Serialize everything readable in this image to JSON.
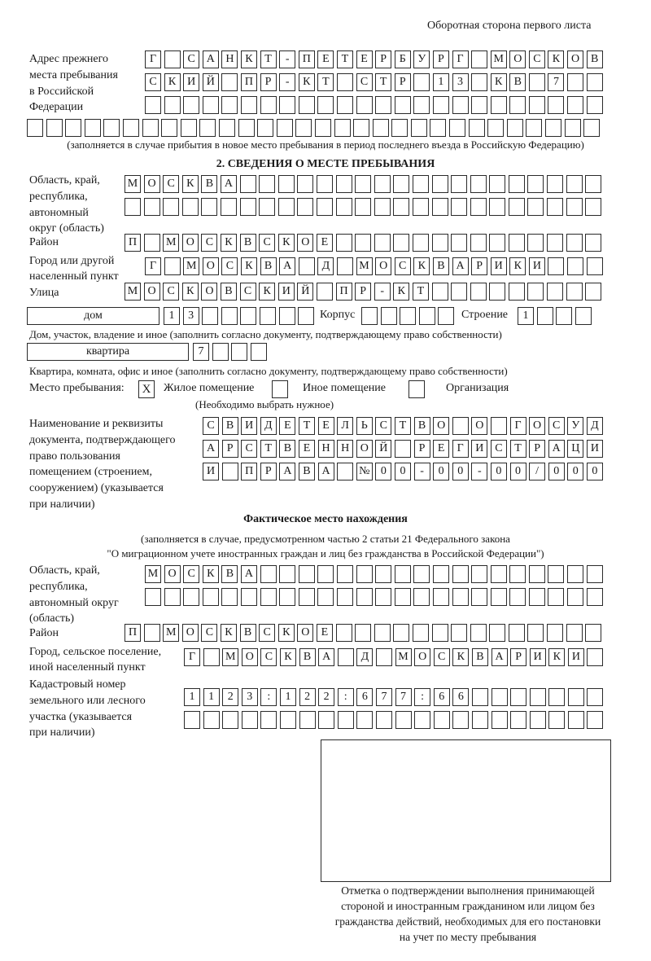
{
  "page_header": "Оборотная сторона первого листа",
  "previous_address": {
    "label": [
      "Адрес прежнего",
      "места пребывания",
      "в Российской",
      "Федерации"
    ],
    "rows": [
      [
        "Г",
        "",
        "С",
        "А",
        "Н",
        "К",
        "Т",
        "-",
        "П",
        "Е",
        "Т",
        "Е",
        "Р",
        "Б",
        "У",
        "Р",
        "Г",
        "",
        "М",
        "О",
        "С",
        "К",
        "О",
        "В"
      ],
      [
        "С",
        "К",
        "И",
        "Й",
        "",
        "П",
        "Р",
        "-",
        "К",
        "Т",
        "",
        "С",
        "Т",
        "Р",
        "",
        "1",
        "3",
        "",
        "К",
        "В",
        "",
        "7",
        "",
        ""
      ],
      [
        "",
        "",
        "",
        "",
        "",
        "",
        "",
        "",
        "",
        "",
        "",
        "",
        "",
        "",
        "",
        "",
        "",
        "",
        "",
        "",
        "",
        "",
        "",
        ""
      ],
      [
        "",
        "",
        "",
        "",
        "",
        "",
        "",
        "",
        "",
        "",
        "",
        "",
        "",
        "",
        "",
        "",
        "",
        "",
        "",
        "",
        "",
        "",
        "",
        "",
        "",
        "",
        "",
        "",
        "",
        ""
      ]
    ],
    "note": "(заполняется в случае прибытия в новое место пребывания в период последнего въезда в Российскую Федерацию)"
  },
  "section2": {
    "title": "2. СВЕДЕНИЯ О МЕСТЕ ПРЕБЫВАНИЯ",
    "region_label": [
      "Область, край,",
      "республика,",
      "автономный",
      "округ (область)"
    ],
    "region_rows": [
      [
        "М",
        "О",
        "С",
        "К",
        "В",
        "А",
        "",
        "",
        "",
        "",
        "",
        "",
        "",
        "",
        "",
        "",
        "",
        "",
        "",
        "",
        "",
        "",
        "",
        "",
        ""
      ],
      [
        "",
        "",
        "",
        "",
        "",
        "",
        "",
        "",
        "",
        "",
        "",
        "",
        "",
        "",
        "",
        "",
        "",
        "",
        "",
        "",
        "",
        "",
        "",
        "",
        ""
      ]
    ],
    "district_label": "Район",
    "district_row": [
      "П",
      "",
      "М",
      "О",
      "С",
      "К",
      "В",
      "С",
      "К",
      "О",
      "Е",
      "",
      "",
      "",
      "",
      "",
      "",
      "",
      "",
      "",
      "",
      "",
      "",
      "",
      ""
    ],
    "city_label": [
      "Город или другой",
      "населенный пункт"
    ],
    "city_row": [
      "Г",
      "",
      "М",
      "О",
      "С",
      "К",
      "В",
      "А",
      "",
      "Д",
      "",
      "М",
      "О",
      "С",
      "К",
      "В",
      "А",
      "Р",
      "И",
      "К",
      "И",
      "",
      "",
      ""
    ],
    "street_label": "Улица",
    "street_row": [
      "М",
      "О",
      "С",
      "К",
      "О",
      "В",
      "С",
      "К",
      "И",
      "Й",
      "",
      "П",
      "Р",
      "-",
      "К",
      "Т",
      "",
      "",
      "",
      "",
      "",
      "",
      "",
      "",
      ""
    ],
    "house_type": "дом",
    "house_row": [
      "1",
      "3",
      "",
      "",
      "",
      "",
      "",
      ""
    ],
    "korpus_label": "Корпус",
    "korpus_row": [
      "",
      "",
      "",
      "",
      ""
    ],
    "building_label": "Строение",
    "building_row": [
      "1",
      "",
      "",
      ""
    ],
    "house_note": "Дом, участок, владение и иное (заполнить согласно документу, подтверждающему право собственности)",
    "apartment_type": "квартира",
    "apartment_row": [
      "7",
      "",
      "",
      ""
    ],
    "apartment_note": "Квартира, комната, офис и иное (заполнить согласно документу, подтверждающему право собственности)",
    "stay_place_label": "Место пребывания:",
    "stay_options": [
      {
        "label": "Жилое помещение",
        "mark": "X"
      },
      {
        "label": "Иное помещение",
        "mark": ""
      },
      {
        "label": "Организация",
        "mark": ""
      }
    ],
    "stay_note": "(Необходимо выбрать нужное)",
    "document_label": [
      "Наименование и реквизиты",
      "документа, подтверждающего",
      "право пользования",
      "помещением (строением,",
      "сооружением) (указывается",
      "при наличии)"
    ],
    "document_rows": [
      [
        "С",
        "В",
        "И",
        "Д",
        "Е",
        "Т",
        "Е",
        "Л",
        "Ь",
        "С",
        "Т",
        "В",
        "О",
        "",
        "О",
        "",
        "Г",
        "О",
        "С",
        "У",
        "Д"
      ],
      [
        "А",
        "Р",
        "С",
        "Т",
        "В",
        "Е",
        "Н",
        "Н",
        "О",
        "Й",
        "",
        "Р",
        "Е",
        "Г",
        "И",
        "С",
        "Т",
        "Р",
        "А",
        "Ц",
        "И"
      ],
      [
        "И",
        "",
        "П",
        "Р",
        "А",
        "В",
        "А",
        "",
        "№",
        "0",
        "0",
        "-",
        "0",
        "0",
        "-",
        "0",
        "0",
        "/",
        "0",
        "0",
        "0"
      ]
    ]
  },
  "actual_location": {
    "title": "Фактическое место нахождения",
    "note": [
      "(заполняется в случае, предусмотренном частью 2 статьи 21 Федерального закона",
      "\"О миграционном учете иностранных граждан и лиц без гражданства в Российской Федерации\")"
    ],
    "region_label": [
      "Область, край,",
      "республика,",
      "автономный округ",
      "(область)"
    ],
    "region_rows": [
      [
        "М",
        "О",
        "С",
        "К",
        "В",
        "А",
        "",
        "",
        "",
        "",
        "",
        "",
        "",
        "",
        "",
        "",
        "",
        "",
        "",
        "",
        "",
        "",
        "",
        ""
      ],
      [
        "",
        "",
        "",
        "",
        "",
        "",
        "",
        "",
        "",
        "",
        "",
        "",
        "",
        "",
        "",
        "",
        "",
        "",
        "",
        "",
        "",
        "",
        "",
        ""
      ]
    ],
    "district_label": "Район",
    "district_row": [
      "П",
      "",
      "М",
      "О",
      "С",
      "К",
      "В",
      "С",
      "К",
      "О",
      "Е",
      "",
      "",
      "",
      "",
      "",
      "",
      "",
      "",
      "",
      "",
      "",
      "",
      "",
      ""
    ],
    "city_label": [
      "Город, сельское поселение,",
      "иной населенный пункт"
    ],
    "city_row": [
      "Г",
      "",
      "М",
      "О",
      "С",
      "К",
      "В",
      "А",
      "",
      "Д",
      "",
      "М",
      "О",
      "С",
      "К",
      "В",
      "А",
      "Р",
      "И",
      "К",
      "И",
      ""
    ],
    "cadastral_label": [
      "Кадастровый номер",
      "земельного или лесного",
      "участка (указывается",
      "при наличии)"
    ],
    "cadastral_rows": [
      [
        "1",
        "1",
        "2",
        "3",
        ":",
        "1",
        "2",
        "2",
        ":",
        "6",
        "7",
        "7",
        ":",
        "6",
        "6",
        "",
        "",
        "",
        "",
        "",
        "",
        ""
      ],
      [
        "",
        "",
        "",
        "",
        "",
        "",
        "",
        "",
        "",
        "",
        "",
        "",
        "",
        "",
        "",
        "",
        "",
        "",
        "",
        "",
        "",
        ""
      ]
    ]
  },
  "stamp_box": {
    "caption": [
      "Отметка о подтверждении выполнения принимающей",
      "стороной и иностранным гражданином или лицом без",
      "гражданства действий, необходимых для его постановки",
      "на учет по месту пребывания"
    ]
  }
}
